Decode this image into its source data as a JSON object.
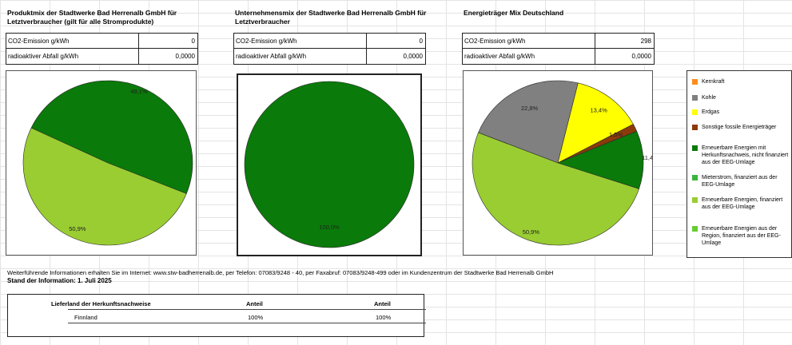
{
  "sections": [
    {
      "title": "Produktmix der Stadtwerke Bad Herrenalb GmbH für Letztverbraucher (gilt für alle Stromprodukte)",
      "co2_label": "CO2-Emission g/kWh",
      "co2_value": "0",
      "waste_label": "radioaktiver Abfall g/kWh",
      "waste_value": "0,0000"
    },
    {
      "title": "Unternehmensmix der Stadtwerke Bad Herrenalb GmbH für Letztverbraucher",
      "co2_label": "CO2-Emission g/kWh",
      "co2_value": "0",
      "waste_label": "radioaktiver Abfall g/kWh",
      "waste_value": "0,0000"
    },
    {
      "title": "Energieträger Mix Deutschland",
      "co2_label": "CO2-Emission g/kWh",
      "co2_value": "298",
      "waste_label": "radioaktiver Abfall g/kWh",
      "waste_value": "0,0000"
    }
  ],
  "chart_data": [
    {
      "type": "pie",
      "slices": [
        {
          "category": "Erneuerbare Energien mit Herkunftsnachweis, nicht finanziert aus der EEG-Umlage",
          "value": 49.1,
          "label": "49,1%",
          "color": "#0a7a0a"
        },
        {
          "category": "Erneuerbare Energien, finanziert aus der EEG-Umlage",
          "value": 50.9,
          "label": "50,9%",
          "color": "#9acd32"
        }
      ]
    },
    {
      "type": "pie",
      "slices": [
        {
          "category": "Erneuerbare Energien mit Herkunftsnachweis, nicht finanziert aus der EEG-Umlage",
          "value": 100.0,
          "label": "100,0%",
          "color": "#0a7a0a"
        }
      ]
    },
    {
      "type": "pie",
      "slices": [
        {
          "category": "Erneuerbare Energien, finanziert aus der EEG-Umlage",
          "value": 50.9,
          "label": "50,9%",
          "color": "#9acd32"
        },
        {
          "category": "Kohle",
          "value": 22.8,
          "label": "22,8%",
          "color": "#808080"
        },
        {
          "category": "Erdgas",
          "value": 13.4,
          "label": "13,4%",
          "color": "#ffff00"
        },
        {
          "category": "Sonstige fossile Energieträger",
          "value": 1.5,
          "label": "1,5%",
          "color": "#8b3a0a"
        },
        {
          "category": "Erneuerbare Energien mit Herkunftsnachweis, nicht finanziert aus der EEG-Umlage",
          "value": 11.4,
          "label": "11,4%",
          "color": "#0a7a0a"
        }
      ]
    }
  ],
  "legend": [
    {
      "label": "Kernkraft",
      "color": "#ff8c1a"
    },
    {
      "label": "Kohle",
      "color": "#808080"
    },
    {
      "label": "Erdgas",
      "color": "#ffff00"
    },
    {
      "label": "Sonstige fossile Energieträger",
      "color": "#8b3a0a"
    },
    {
      "label": "Erneuerbare Energien mit Herkunftsnachweis, nicht finanziert aus der EEG-Umlage",
      "color": "#0a7a0a"
    },
    {
      "label": "Mieterstrom, finanziert aus der EEG-Umlage",
      "color": "#3cb43c"
    },
    {
      "label": "Erneuerbare Energien, finanziert aus der EEG-Umlage",
      "color": "#9acd32"
    },
    {
      "label": "Erneuerbare Energien aus der Region, finanziert aus der EEG-Umlage",
      "color": "#66cc33"
    }
  ],
  "info_text": "Weiterführende Informationen erhalten Sie im Internet: www.stw-badherrenalb.de, per Telefon: 07083/9248 - 40, per Faxabruf: 07083/9248-499 oder im Kundenzentrum der Stadtwerke Bad Herrenalb GmbH",
  "stand": "Stand der Information: 1. Juli 2025",
  "herkunft_table": {
    "headers": [
      "Lieferland der Herkunftsnachweise",
      "Anteil",
      "Anteil"
    ],
    "rows": [
      [
        "Finnland",
        "100%",
        "100%"
      ]
    ]
  }
}
